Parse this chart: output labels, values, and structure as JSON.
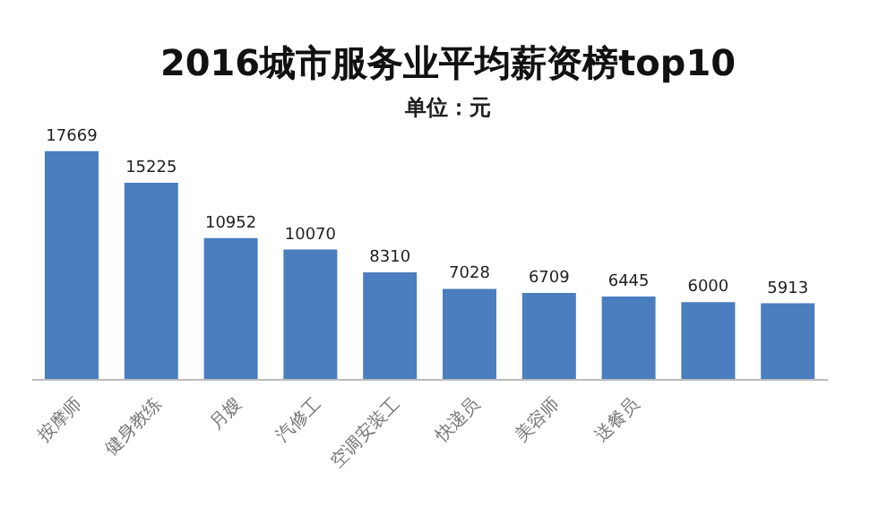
{
  "chart_data": {
    "type": "bar",
    "title": "2016城市服务业平均薪资榜top10",
    "subtitle": "单位：元",
    "categories": [
      "按摩师",
      "健身教练",
      "月嫂",
      "汽修工",
      "空调安装工",
      "快递员",
      "美容师",
      "送餐员",
      null,
      null
    ],
    "values": [
      17669,
      15225,
      10952,
      10070,
      8310,
      7028,
      6709,
      6445,
      6000,
      5913
    ],
    "color": "#4a7ebf",
    "data_labels": true,
    "tick_labels": "x"
  }
}
